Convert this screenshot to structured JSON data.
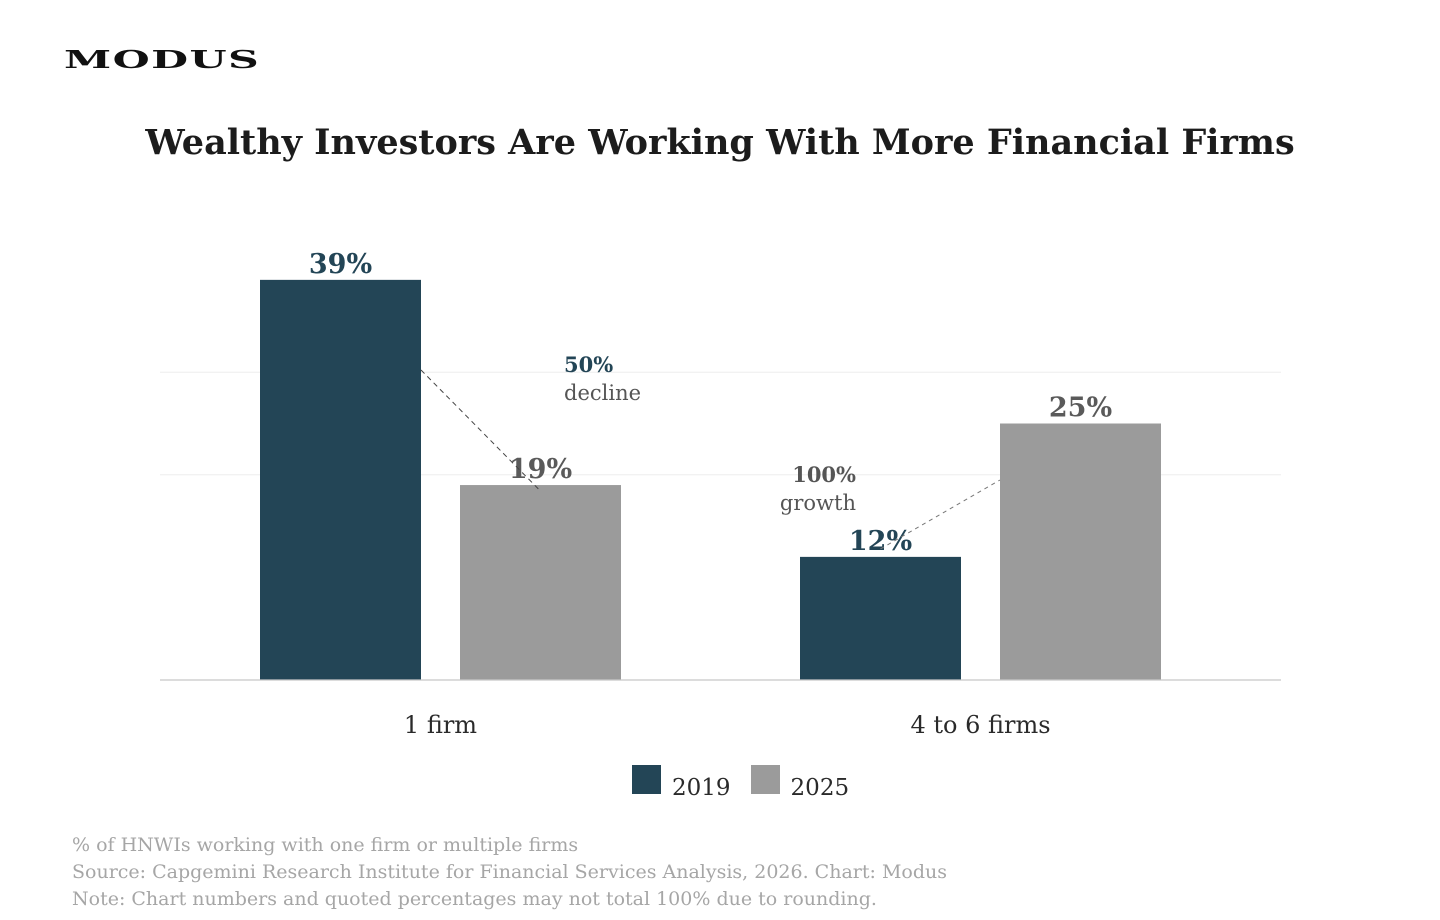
{
  "brand": {
    "logo_text": "MODUS"
  },
  "chart_data": {
    "type": "bar",
    "title": "Wealthy Investors Are Working With More Financial Firms",
    "categories": [
      "1 firm",
      "4 to 6 firms"
    ],
    "series": [
      {
        "name": "2019",
        "values": [
          39,
          12
        ],
        "labels": [
          "39%",
          "12%"
        ],
        "color": "#234556"
      },
      {
        "name": "2025",
        "values": [
          19,
          25
        ],
        "labels": [
          "19%",
          "25%"
        ],
        "color": "#9b9b9b"
      }
    ],
    "ylim": [
      0,
      40
    ],
    "gridlines": [
      20,
      30
    ],
    "annotations": [
      {
        "category": "1 firm",
        "value_text": "50%",
        "caption": "decline",
        "color": "#234556"
      },
      {
        "category": "4 to 6 firms",
        "value_text": "100%",
        "caption": "growth",
        "color": "#555555"
      }
    ],
    "legend_position": "bottom-center"
  },
  "footnotes": {
    "measure": "% of HNWIs working with one firm or multiple firms",
    "source": "Source: Capgemini Research Institute for Financial Services Analysis, 2026. Chart: Modus",
    "note": "Note: Chart numbers and quoted percentages may not total 100% due to rounding."
  }
}
